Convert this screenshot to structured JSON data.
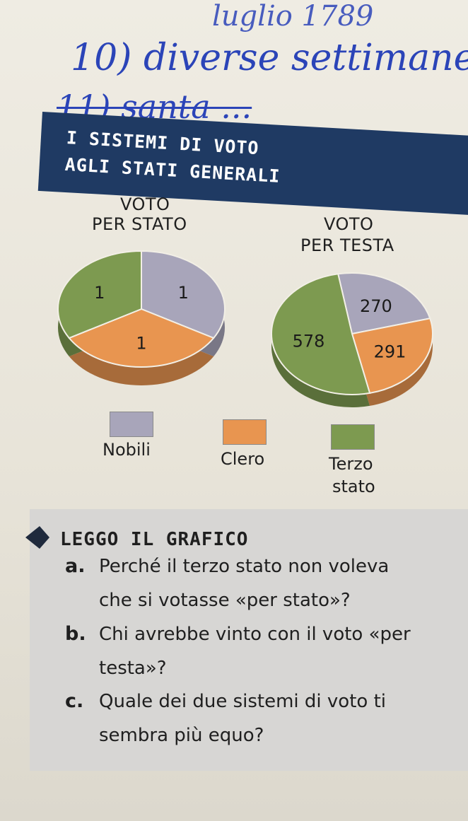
{
  "handwriting": {
    "line1": "luglio 1789",
    "line2": "10) diverse settimane",
    "line3": "11) santa ..."
  },
  "banner": {
    "line1": "I SISTEMI DI VOTO",
    "line2": "AGLI STATI GENERALI"
  },
  "colors": {
    "nobili": "#a8a5ba",
    "clero": "#e89550",
    "terzo_stato": "#7d9a50",
    "banner": "#1f3a63"
  },
  "chart_data": [
    {
      "type": "pie",
      "title_lines": [
        "VOTO",
        "PER STATO"
      ],
      "categories": [
        "Nobili",
        "Clero",
        "Terzo stato"
      ],
      "values": [
        1,
        1,
        1
      ],
      "data_labels": [
        "1",
        "1",
        "1"
      ]
    },
    {
      "type": "pie",
      "title_lines": [
        "VOTO",
        "PER TESTA"
      ],
      "categories": [
        "Nobili",
        "Clero",
        "Terzo stato"
      ],
      "values": [
        270,
        291,
        578
      ],
      "data_labels": [
        "270",
        "291",
        "578"
      ]
    }
  ],
  "legend": [
    {
      "label_lines": [
        "Nobili"
      ]
    },
    {
      "label_lines": [
        "Clero"
      ]
    },
    {
      "label_lines": [
        "Terzo",
        "stato"
      ]
    }
  ],
  "questions": {
    "heading": "LEGGO IL GRAFICO",
    "items": [
      {
        "letter": "a.",
        "lines": [
          "Perché il terzo stato non voleva",
          "che si votasse «per stato»?"
        ]
      },
      {
        "letter": "b.",
        "lines": [
          "Chi avrebbe vinto con il voto «per",
          "testa»?"
        ]
      },
      {
        "letter": "c.",
        "lines": [
          "Quale dei due sistemi di voto ti",
          "sembra più equo?"
        ]
      }
    ]
  }
}
